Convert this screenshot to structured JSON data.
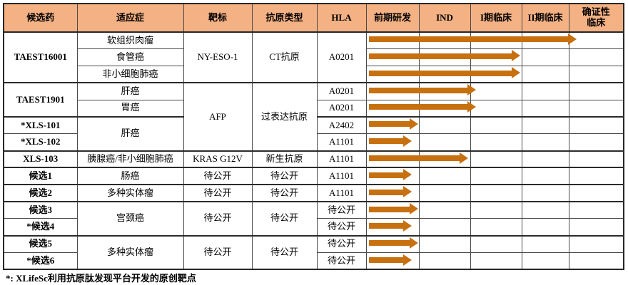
{
  "colors": {
    "header_bg": "#F4B183",
    "arrow": "#C7700F",
    "grid_border": "#4a4a4a"
  },
  "chart_data": {
    "type": "table",
    "description_of_graphic": "drug pipeline table with orange progress arrows spanning development stages",
    "columns": [
      "候选药",
      "适应症",
      "靶标",
      "抗原类型",
      "HLA",
      "前期研发",
      "IND",
      "I期临床",
      "II期临床",
      "确证性临床"
    ],
    "stage_columns": [
      "前期研发",
      "IND",
      "I期临床",
      "II期临床",
      "确证性临床"
    ],
    "progress_unit": "stages completed out of 5 (arrow length)",
    "rows": [
      {
        "candidate": "TAEST16001",
        "indication": "软组织肉瘤",
        "target": "NY-ESO-1",
        "antigen": "CT抗原",
        "hla": "A0201",
        "progress_stages": 4.1
      },
      {
        "indication": "食管癌",
        "progress_stages": 3.0
      },
      {
        "indication": "非小细胞肺癌",
        "progress_stages": 3.0
      },
      {
        "candidate": "TAEST1901",
        "indication": "肝癌",
        "target": "AFP",
        "antigen": "过表达抗原",
        "hla": "A0201",
        "progress_stages": 2.15
      },
      {
        "indication": "胃癌",
        "hla": "A0201",
        "progress_stages": 2.15
      },
      {
        "candidate": "*XLS-101",
        "indication": "肝癌",
        "hla": "A2402",
        "progress_stages": 1.02
      },
      {
        "candidate": "*XLS-102",
        "hla": "A1101",
        "progress_stages": 0.9
      },
      {
        "candidate": "XLS-103",
        "indication": "胰腺癌/非小细胞肺癌",
        "target": "KRAS G12V",
        "antigen": "新生抗原",
        "hla": "A1101",
        "progress_stages": 2.0
      },
      {
        "candidate": "候选1",
        "indication": "肠癌",
        "target": "待公开",
        "antigen": "待公开",
        "hla": "A1101",
        "progress_stages": 0.9
      },
      {
        "candidate": "候选2",
        "indication": "多种实体瘤",
        "target": "待公开",
        "antigen": "待公开",
        "hla": "A1101",
        "progress_stages": 0.9
      },
      {
        "candidate": "候选3",
        "indication": "宫颈癌",
        "target": "待公开",
        "antigen": "待公开",
        "hla": "待公开",
        "progress_stages": 1.02
      },
      {
        "candidate": "*候选4",
        "hla": "待公开",
        "progress_stages": 0.9
      },
      {
        "candidate": "候选5",
        "indication": "多种实体瘤",
        "target": "待公开",
        "antigen": "待公开",
        "hla": "待公开",
        "progress_stages": 1.02
      },
      {
        "candidate": "*候选6",
        "hla": "待公开",
        "progress_stages": 0.9
      }
    ],
    "footnote": "*: XLifeSc利用抗原肽发现平台开发的原创靶点"
  }
}
